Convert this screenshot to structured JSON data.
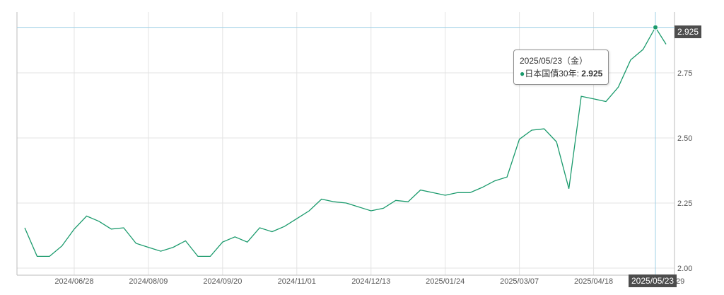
{
  "chart_data": {
    "type": "line",
    "series": [
      {
        "color": "#1a9a6c",
        "points": [
          [
            "2024-05-31",
            2.155
          ],
          [
            "2024-06-07",
            2.045
          ],
          [
            "2024-06-14",
            2.045
          ],
          [
            "2024-06-21",
            2.085
          ],
          [
            "2024-06-28",
            2.15
          ],
          [
            "2024-07-05",
            2.2
          ],
          [
            "2024-07-12",
            2.18
          ],
          [
            "2024-07-19",
            2.15
          ],
          [
            "2024-07-26",
            2.155
          ],
          [
            "2024-08-02",
            2.095
          ],
          [
            "2024-08-09",
            2.08
          ],
          [
            "2024-08-16",
            2.065
          ],
          [
            "2024-08-23",
            2.08
          ],
          [
            "2024-08-30",
            2.105
          ],
          [
            "2024-09-06",
            2.045
          ],
          [
            "2024-09-13",
            2.045
          ],
          [
            "2024-09-20",
            2.1
          ],
          [
            "2024-09-27",
            2.12
          ],
          [
            "2024-10-04",
            2.1
          ],
          [
            "2024-10-11",
            2.155
          ],
          [
            "2024-10-18",
            2.14
          ],
          [
            "2024-10-25",
            2.16
          ],
          [
            "2024-11-01",
            2.19
          ],
          [
            "2024-11-08",
            2.22
          ],
          [
            "2024-11-15",
            2.265
          ],
          [
            "2024-11-22",
            2.255
          ],
          [
            "2024-11-29",
            2.25
          ],
          [
            "2024-12-06",
            2.235
          ],
          [
            "2024-12-13",
            2.22
          ],
          [
            "2024-12-20",
            2.23
          ],
          [
            "2024-12-27",
            2.26
          ],
          [
            "2025-01-03",
            2.255
          ],
          [
            "2025-01-10",
            2.3
          ],
          [
            "2025-01-17",
            2.29
          ],
          [
            "2025-01-24",
            2.28
          ],
          [
            "2025-01-31",
            2.29
          ],
          [
            "2025-02-07",
            2.29
          ],
          [
            "2025-02-14",
            2.31
          ],
          [
            "2025-02-21",
            2.335
          ],
          [
            "2025-02-28",
            2.35
          ],
          [
            "2025-03-07",
            2.495
          ],
          [
            "2025-03-14",
            2.53
          ],
          [
            "2025-03-21",
            2.535
          ],
          [
            "2025-03-28",
            2.485
          ],
          [
            "2025-04-04",
            2.305
          ],
          [
            "2025-04-11",
            2.66
          ],
          [
            "2025-04-18",
            2.65
          ],
          [
            "2025-04-25",
            2.64
          ],
          [
            "2025-05-02",
            2.695
          ],
          [
            "2025-05-09",
            2.8
          ],
          [
            "2025-05-16",
            2.84
          ],
          [
            "2025-05-23",
            2.925
          ],
          [
            "2025-05-29",
            2.86
          ]
        ]
      }
    ],
    "x_ticks": [
      "2024/06/28",
      "2024/08/09",
      "2024/09/20",
      "2024/11/01",
      "2024/12/13",
      "2025/01/24",
      "2025/03/07",
      "2025/04/18"
    ],
    "y_ticks": [
      "2.00",
      "2.25",
      "2.50",
      "2.75"
    ],
    "ylim": [
      2.0,
      3.0
    ],
    "xlim": [
      "2024-05-31",
      "2025-05-29"
    ],
    "grid": true,
    "crosshair": {
      "x": "2025/05/23",
      "y": "2.925"
    },
    "clipped_tick_text": "29"
  },
  "tooltip": {
    "date": "2025/05/23（金）",
    "series_label": "日本国債30年: ",
    "value": "2.925"
  }
}
